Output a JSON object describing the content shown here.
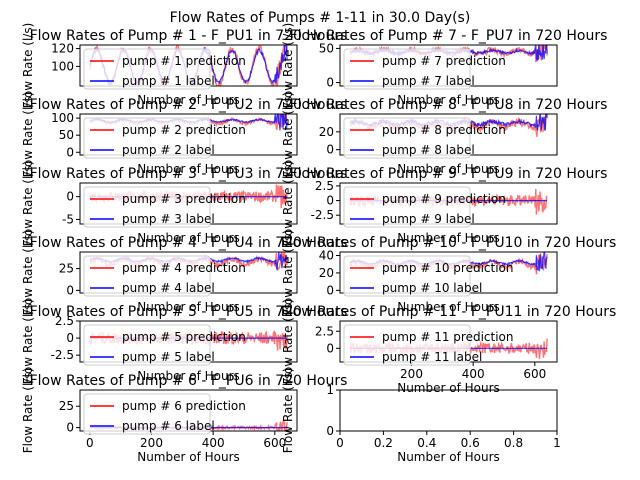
{
  "figure": {
    "suptitle": "Flow Rates of Pumps # 1-11 in 30.0 Day(s)"
  },
  "chart_data": [
    {
      "type": "line",
      "title": "Flow Rates of Pump # 1 - F_PU1 in 720 Hours",
      "xlabel": "Number of Hours",
      "ylabel": "Flow Rate (l/s)",
      "xlim": [
        -32,
        672
      ],
      "ylim": [
        78,
        124
      ],
      "x_ticks": [],
      "y_ticks": [
        100,
        120
      ],
      "series": [
        {
          "name": "pump # 1 prediction",
          "color": "#ff0000",
          "kind": "pred",
          "base": 100,
          "amp": 20,
          "noise": 4
        },
        {
          "name": "pump # 1 label",
          "color": "#0000ff",
          "kind": "label",
          "base": 100,
          "amp": 20,
          "noise": 2
        }
      ],
      "legend": "upper left"
    },
    {
      "type": "line",
      "title": "Flow Rates of Pump # 2 - F_PU2 in 720 Hours",
      "xlabel": "Number of Hours",
      "ylabel": "Flow Rate (l/s)",
      "xlim": [
        -32,
        672
      ],
      "ylim": [
        -8,
        112
      ],
      "x_ticks": [],
      "y_ticks": [
        0,
        50,
        100
      ],
      "series": [
        {
          "name": "pump # 2 prediction",
          "color": "#ff0000",
          "kind": "pred",
          "base": 90,
          "amp": 6,
          "noise": 4
        },
        {
          "name": "pump # 2 label",
          "color": "#0000ff",
          "kind": "label",
          "base": 92,
          "amp": 4,
          "noise": 2
        }
      ],
      "legend": "upper left"
    },
    {
      "type": "line",
      "title": "Flow Rates of Pump # 3 - F_PU3 in 720 Hours",
      "xlabel": "Number of Hours",
      "ylabel": "Flow Rate (l/s)",
      "xlim": [
        -32,
        672
      ],
      "ylim": [
        -6,
        3
      ],
      "x_ticks": [],
      "y_ticks": [
        -5,
        0
      ],
      "series": [
        {
          "name": "pump # 3 prediction",
          "color": "#ff0000",
          "kind": "pred",
          "base": 0,
          "amp": 0,
          "noise": 1.2
        },
        {
          "name": "pump # 3 label",
          "color": "#0000ff",
          "kind": "label",
          "base": 0,
          "amp": 0,
          "noise": 0
        }
      ],
      "legend": "upper left"
    },
    {
      "type": "line",
      "title": "Flow Rates of Pump # 4 - F_PU4 in 720 Hours",
      "xlabel": "Number of Hours",
      "ylabel": "Flow Rate (l/s)",
      "xlim": [
        -32,
        672
      ],
      "ylim": [
        -3,
        44
      ],
      "x_ticks": [],
      "y_ticks": [
        0,
        25
      ],
      "series": [
        {
          "name": "pump # 4 prediction",
          "color": "#ff0000",
          "kind": "pred",
          "base": 33,
          "amp": 3,
          "noise": 3
        },
        {
          "name": "pump # 4 label",
          "color": "#0000ff",
          "kind": "label",
          "base": 35,
          "amp": 2,
          "noise": 1
        }
      ],
      "legend": "upper left"
    },
    {
      "type": "line",
      "title": "Flow Rates of Pump # 5 - F_PU5 in 720 Hours",
      "xlabel": "Number of Hours",
      "ylabel": "Flow Rate (l/s)",
      "xlim": [
        -32,
        672
      ],
      "ylim": [
        -3.5,
        2.5
      ],
      "x_ticks": [],
      "y_ticks": [
        -2.5,
        0.0,
        2.5
      ],
      "series": [
        {
          "name": "pump # 5 prediction",
          "color": "#ff0000",
          "kind": "pred",
          "base": 0,
          "amp": 0,
          "noise": 0.9
        },
        {
          "name": "pump # 5 label",
          "color": "#0000ff",
          "kind": "label",
          "base": 0,
          "amp": 0,
          "noise": 0
        }
      ],
      "legend": "upper left"
    },
    {
      "type": "line",
      "title": "Flow Rates of Pump # 6 - F_PU6 in 720 Hours",
      "xlabel": "Number of Hours",
      "ylabel": "Flow Rate (l/s)",
      "xlim": [
        -32,
        672
      ],
      "ylim": [
        -4,
        44
      ],
      "x_ticks": [
        0,
        200,
        400,
        600
      ],
      "y_ticks": [
        0,
        25
      ],
      "series": [
        {
          "name": "pump # 6 prediction",
          "color": "#ff0000",
          "kind": "pred",
          "base": 0,
          "amp": 0,
          "noise": 1.5
        },
        {
          "name": "pump # 6 label",
          "color": "#0000ff",
          "kind": "label",
          "base": 0,
          "amp": 0,
          "noise": 0
        }
      ],
      "legend": "upper left"
    },
    {
      "type": "line",
      "title": "Flow Rates of Pump # 7 - F_PU7 in 720 Hours",
      "xlabel": "Number of Hours",
      "ylabel": "Flow Rate (l/s)",
      "xlim": [
        -32,
        672
      ],
      "ylim": [
        -5,
        55
      ],
      "x_ticks": [],
      "y_ticks": [
        0,
        50
      ],
      "series": [
        {
          "name": "pump # 7 prediction",
          "color": "#ff0000",
          "kind": "pred",
          "base": 45,
          "amp": 3,
          "noise": 4
        },
        {
          "name": "pump # 7 label",
          "color": "#0000ff",
          "kind": "label",
          "base": 45,
          "amp": 2,
          "noise": 2
        }
      ],
      "legend": "upper left"
    },
    {
      "type": "line",
      "title": "Flow Rates of Pump # 8 - F_PU8 in 720 Hours",
      "xlabel": "Number of Hours",
      "ylabel": "Flow Rate (l/s)",
      "xlim": [
        -32,
        672
      ],
      "ylim": [
        -6,
        40
      ],
      "x_ticks": [],
      "y_ticks": [
        0,
        20
      ],
      "series": [
        {
          "name": "pump # 8 prediction",
          "color": "#ff0000",
          "kind": "pred",
          "base": 28,
          "amp": 3,
          "noise": 4
        },
        {
          "name": "pump # 8 label",
          "color": "#0000ff",
          "kind": "label",
          "base": 30,
          "amp": 2,
          "noise": 2
        }
      ],
      "legend": "upper left"
    },
    {
      "type": "line",
      "title": "Flow Rates of Pump # 9 - F_PU9 in 720 Hours",
      "xlabel": "Number of Hours",
      "ylabel": "Flow Rate (l/s)",
      "xlim": [
        -32,
        672
      ],
      "ylim": [
        -4,
        3
      ],
      "x_ticks": [],
      "y_ticks": [
        -2.5,
        0.0,
        2.5
      ],
      "series": [
        {
          "name": "pump # 9 prediction",
          "color": "#ff0000",
          "kind": "pred",
          "base": 0,
          "amp": 0,
          "noise": 0.9
        },
        {
          "name": "pump # 9 label",
          "color": "#0000ff",
          "kind": "label",
          "base": 0,
          "amp": 0,
          "noise": 0
        }
      ],
      "legend": "upper left"
    },
    {
      "type": "line",
      "title": "Flow Rates of Pump # 10 - F_PU10 in 720 Hours",
      "xlabel": "Number of Hours",
      "ylabel": "Flow Rate (l/s)",
      "xlim": [
        -32,
        672
      ],
      "ylim": [
        -3,
        44
      ],
      "x_ticks": [],
      "y_ticks": [
        0,
        20,
        40
      ],
      "series": [
        {
          "name": "pump # 10 prediction",
          "color": "#ff0000",
          "kind": "pred",
          "base": 30,
          "amp": 3,
          "noise": 3
        },
        {
          "name": "pump # 10 label",
          "color": "#0000ff",
          "kind": "label",
          "base": 32,
          "amp": 2,
          "noise": 1
        }
      ],
      "legend": "upper left"
    },
    {
      "type": "line",
      "title": "Flow Rates of Pump # 11 - F_PU11 in 720 Hours",
      "xlabel": "Number of Hours",
      "ylabel": "Flow Rate (l/s)",
      "xlim": [
        -32,
        672
      ],
      "ylim": [
        -2,
        4
      ],
      "x_ticks": [
        200,
        400,
        600
      ],
      "y_ticks": [
        0.0,
        2.5
      ],
      "series": [
        {
          "name": "pump # 11 prediction",
          "color": "#ff0000",
          "kind": "pred",
          "base": 0,
          "amp": 0,
          "noise": 0.8
        },
        {
          "name": "pump # 11 label",
          "color": "#0000ff",
          "kind": "label",
          "base": 0,
          "amp": 0,
          "noise": 0
        }
      ],
      "legend": "upper left"
    },
    {
      "type": "line",
      "title": "",
      "xlabel": "Number of Hours",
      "ylabel": "Flow Rate (l/s)",
      "xlim": [
        0,
        1
      ],
      "ylim": [
        0,
        1
      ],
      "x_ticks": [
        0.0,
        0.2,
        0.4,
        0.6,
        0.8,
        1.0
      ],
      "y_ticks": [
        0,
        1
      ],
      "series": [],
      "legend": ""
    }
  ]
}
